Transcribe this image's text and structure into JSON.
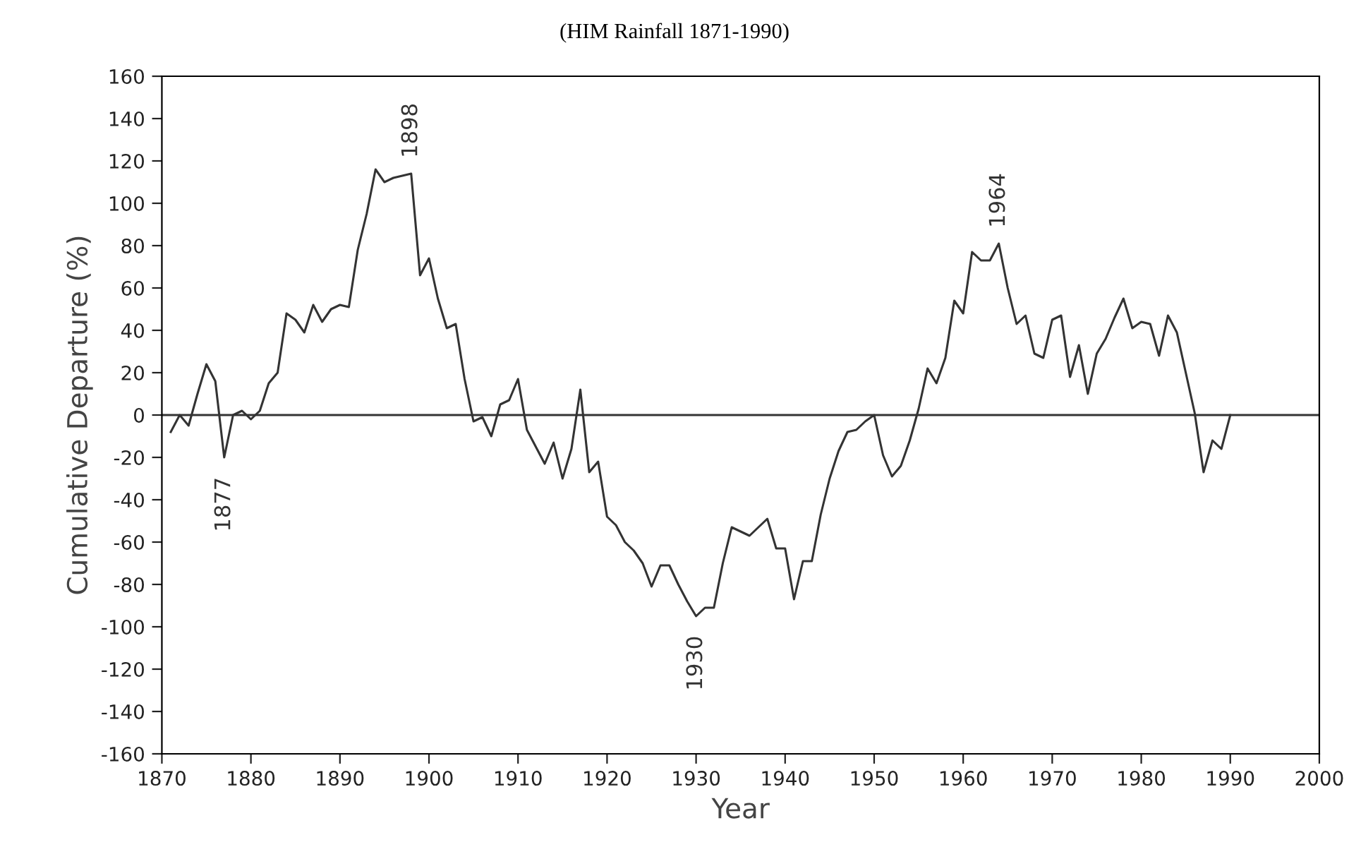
{
  "chart_data": {
    "type": "line",
    "title": "(HIM Rainfall 1871-1990)",
    "xlabel": "Year",
    "ylabel": "Cumulative Departure (%)",
    "x": [
      1871,
      1872,
      1873,
      1874,
      1875,
      1876,
      1877,
      1878,
      1879,
      1880,
      1881,
      1882,
      1883,
      1884,
      1885,
      1886,
      1887,
      1888,
      1889,
      1890,
      1891,
      1892,
      1893,
      1894,
      1895,
      1896,
      1897,
      1898,
      1899,
      1900,
      1901,
      1902,
      1903,
      1904,
      1905,
      1906,
      1907,
      1908,
      1909,
      1910,
      1911,
      1912,
      1913,
      1914,
      1915,
      1916,
      1917,
      1918,
      1919,
      1920,
      1921,
      1922,
      1923,
      1924,
      1925,
      1926,
      1927,
      1928,
      1929,
      1930,
      1931,
      1932,
      1933,
      1934,
      1935,
      1936,
      1937,
      1938,
      1939,
      1940,
      1941,
      1942,
      1943,
      1944,
      1945,
      1946,
      1947,
      1948,
      1949,
      1950,
      1951,
      1952,
      1953,
      1954,
      1955,
      1956,
      1957,
      1958,
      1959,
      1960,
      1961,
      1962,
      1963,
      1964,
      1965,
      1966,
      1967,
      1968,
      1969,
      1970,
      1971,
      1972,
      1973,
      1974,
      1975,
      1976,
      1977,
      1978,
      1979,
      1980,
      1981,
      1982,
      1983,
      1984,
      1985,
      1986,
      1987,
      1988,
      1989,
      1990
    ],
    "series": [
      {
        "color": "#333333",
        "values": [
          -8,
          0,
          -5,
          10,
          24,
          16,
          -20,
          0,
          2,
          -2,
          2,
          15,
          20,
          48,
          45,
          39,
          52,
          44,
          50,
          52,
          51,
          78,
          95,
          116,
          110,
          112,
          113,
          114,
          66,
          74,
          55,
          41,
          43,
          17,
          -3,
          -1,
          -10,
          5,
          7,
          17,
          -7,
          -15,
          -23,
          -13,
          -30,
          -16,
          12,
          -27,
          -22,
          -48,
          -52,
          -60,
          -64,
          -70,
          -81,
          -71,
          -71,
          -80,
          -88,
          -95,
          -91,
          -91,
          -70,
          -53,
          -55,
          -57,
          -53,
          -49,
          -63,
          -63,
          -87,
          -69,
          -69,
          -47,
          -30,
          -17,
          -8,
          -7,
          -3,
          0,
          -19,
          -29,
          -24,
          -12,
          3,
          22,
          15,
          27,
          54,
          48,
          77,
          73,
          73,
          81,
          60,
          43,
          47,
          29,
          27,
          45,
          47,
          18,
          33,
          10,
          29,
          36,
          46,
          55,
          41,
          44,
          43,
          28,
          47,
          39,
          20,
          1,
          -27,
          -12,
          -16,
          0
        ]
      }
    ],
    "xlim": [
      1870,
      2000
    ],
    "xticks": [
      1870,
      1880,
      1890,
      1900,
      1910,
      1920,
      1930,
      1940,
      1950,
      1960,
      1970,
      1980,
      1990,
      2000
    ],
    "ylim": [
      -160,
      160
    ],
    "yticks": [
      -160,
      -140,
      -120,
      -100,
      -80,
      -60,
      -40,
      -20,
      0,
      20,
      40,
      60,
      80,
      100,
      120,
      140,
      160
    ],
    "ref_lines": [
      {
        "axis": "y",
        "value": 0,
        "color": "#333333"
      }
    ],
    "annotations": [
      {
        "text": "1877",
        "x": 1877,
        "y": -20
      },
      {
        "text": "1898",
        "x": 1898,
        "y": 114
      },
      {
        "text": "1930",
        "x": 1930,
        "y": -95
      },
      {
        "text": "1964",
        "x": 1964,
        "y": 81
      }
    ],
    "grid": false,
    "legend": false,
    "marker": "none",
    "line_style": "solid"
  }
}
